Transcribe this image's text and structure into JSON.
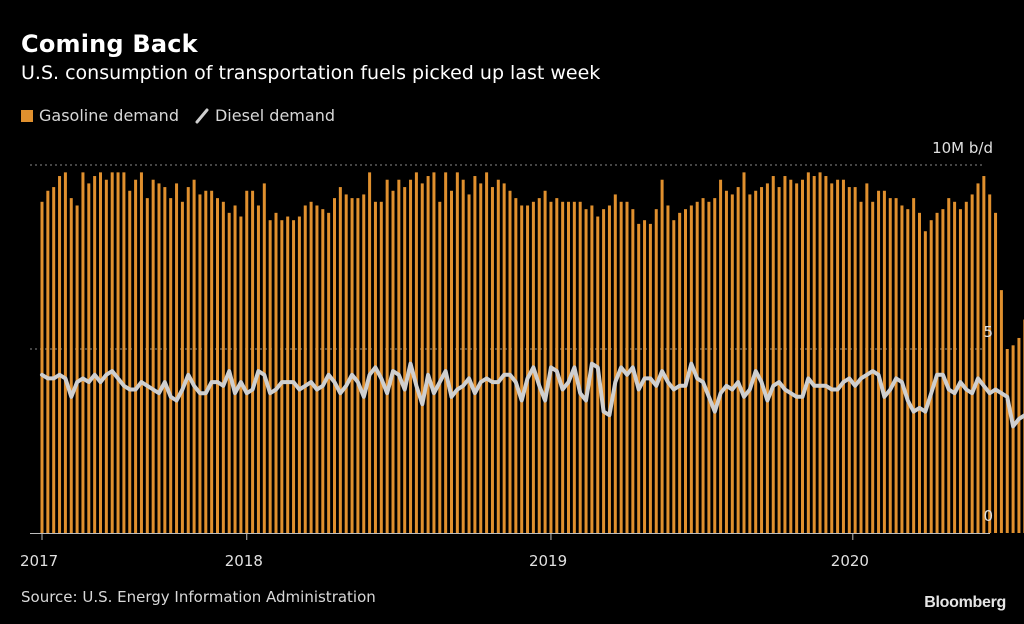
{
  "header": {
    "title": "Coming Back",
    "subtitle": "U.S. consumption of transportation fuels picked up last week"
  },
  "legend": {
    "gasoline_label": "Gasoline demand",
    "diesel_label": "Diesel demand"
  },
  "footer": {
    "source": "Source: U.S. Energy Information Administration",
    "brand": "Bloomberg"
  },
  "colors": {
    "gasoline": "#e0902e",
    "diesel": "#cfcfcf",
    "background": "#000000",
    "grid": "#8a8a8a"
  },
  "chart_data": {
    "type": "bar",
    "title": "Coming Back",
    "subtitle": "U.S. consumption of transportation fuels picked up last week",
    "xlabel": "",
    "ylabel": "",
    "y_unit_label": "10M b/d",
    "ylim": [
      0,
      10
    ],
    "y_ticks": [
      {
        "value": 10,
        "label": "10M b/d"
      },
      {
        "value": 5,
        "label": "5"
      },
      {
        "value": 0,
        "label": "0"
      }
    ],
    "x_ticks": [
      {
        "week_index": 0,
        "label": "2017"
      },
      {
        "week_index": 35,
        "label": "2018"
      },
      {
        "week_index": 87,
        "label": "2019"
      },
      {
        "week_index": 138.6,
        "label": "2020"
      }
    ],
    "x_range_weeks": [
      0,
      164
    ],
    "frequency": "weekly",
    "grid": true,
    "legend_position": "top-left",
    "series": [
      {
        "name": "Gasoline demand",
        "type": "bar",
        "values": [
          9.0,
          9.3,
          9.4,
          9.7,
          9.8,
          9.1,
          8.9,
          9.8,
          9.5,
          9.7,
          9.8,
          9.6,
          9.8,
          9.8,
          9.8,
          9.3,
          9.6,
          9.8,
          9.1,
          9.6,
          9.5,
          9.4,
          9.1,
          9.5,
          9.0,
          9.4,
          9.6,
          9.2,
          9.3,
          9.3,
          9.1,
          9.0,
          8.7,
          8.9,
          8.6,
          9.3,
          9.3,
          8.9,
          9.5,
          8.5,
          8.7,
          8.5,
          8.6,
          8.5,
          8.6,
          8.9,
          9.0,
          8.9,
          8.8,
          8.7,
          9.1,
          9.4,
          9.2,
          9.1,
          9.1,
          9.2,
          9.8,
          9.0,
          9.0,
          9.6,
          9.3,
          9.6,
          9.4,
          9.6,
          9.8,
          9.5,
          9.7,
          9.8,
          9.0,
          9.8,
          9.3,
          9.8,
          9.6,
          9.2,
          9.7,
          9.5,
          9.8,
          9.4,
          9.6,
          9.5,
          9.3,
          9.1,
          8.9,
          8.9,
          9.0,
          9.1,
          9.3,
          9.0,
          9.1,
          9.0,
          9.0,
          9.0,
          9.0,
          8.8,
          8.9,
          8.6,
          8.8,
          8.9,
          9.2,
          9.0,
          9.0,
          8.8,
          8.4,
          8.5,
          8.4,
          8.8,
          9.6,
          8.9,
          8.5,
          8.7,
          8.8,
          8.9,
          9.0,
          9.1,
          9.0,
          9.1,
          9.6,
          9.3,
          9.2,
          9.4,
          9.8,
          9.2,
          9.3,
          9.4,
          9.5,
          9.7,
          9.4,
          9.7,
          9.6,
          9.5,
          9.6,
          9.8,
          9.7,
          9.8,
          9.7,
          9.5,
          9.6,
          9.6,
          9.4,
          9.4,
          9.0,
          9.5,
          9.0,
          9.3,
          9.3,
          9.1,
          9.1,
          8.9,
          8.8,
          9.1,
          8.7,
          8.2,
          8.5,
          8.7,
          8.8,
          9.1,
          9.0,
          8.8,
          9.0,
          9.2,
          9.5,
          9.7,
          9.2,
          8.7,
          6.6,
          5.0,
          5.1,
          5.3,
          5.8
        ],
        "unit": "M b/d"
      },
      {
        "name": "Diesel demand",
        "type": "line",
        "values": [
          4.3,
          4.2,
          4.2,
          4.3,
          4.2,
          3.7,
          4.1,
          4.2,
          4.1,
          4.3,
          4.1,
          4.3,
          4.4,
          4.2,
          4.0,
          3.9,
          3.9,
          4.1,
          4.0,
          3.9,
          3.8,
          4.1,
          3.7,
          3.6,
          3.9,
          4.3,
          4.0,
          3.8,
          3.8,
          4.1,
          4.1,
          4.0,
          4.4,
          3.8,
          4.1,
          3.8,
          3.9,
          4.4,
          4.3,
          3.8,
          3.9,
          4.1,
          4.1,
          4.1,
          3.9,
          4.0,
          4.1,
          3.9,
          4.0,
          4.3,
          4.1,
          3.8,
          4.0,
          4.3,
          4.1,
          3.7,
          4.3,
          4.5,
          4.2,
          3.8,
          4.4,
          4.3,
          3.9,
          4.6,
          4.0,
          3.5,
          4.3,
          3.8,
          4.1,
          4.4,
          3.7,
          3.9,
          4.0,
          4.2,
          3.8,
          4.1,
          4.2,
          4.1,
          4.1,
          4.3,
          4.3,
          4.1,
          3.6,
          4.2,
          4.5,
          4.0,
          3.6,
          4.5,
          4.4,
          3.9,
          4.1,
          4.5,
          3.8,
          3.6,
          4.6,
          4.5,
          3.3,
          3.2,
          4.1,
          4.5,
          4.3,
          4.5,
          3.9,
          4.2,
          4.2,
          4.0,
          4.4,
          4.1,
          3.9,
          4.0,
          4.0,
          4.6,
          4.2,
          4.1,
          3.7,
          3.3,
          3.8,
          4.0,
          3.9,
          4.1,
          3.7,
          3.9,
          4.4,
          4.1,
          3.6,
          4.0,
          4.1,
          3.9,
          3.8,
          3.7,
          3.7,
          4.2,
          4.0,
          4.0,
          4.0,
          3.9,
          3.9,
          4.1,
          4.2,
          4.0,
          4.2,
          4.3,
          4.4,
          4.3,
          3.7,
          3.9,
          4.2,
          4.1,
          3.6,
          3.3,
          3.4,
          3.3,
          3.8,
          4.3,
          4.3,
          3.9,
          3.8,
          4.1,
          3.9,
          3.8,
          4.2,
          4.0,
          3.8,
          3.9,
          3.8,
          3.7,
          2.9,
          3.1,
          3.2,
          3.2
        ],
        "unit": "M b/d"
      }
    ]
  }
}
